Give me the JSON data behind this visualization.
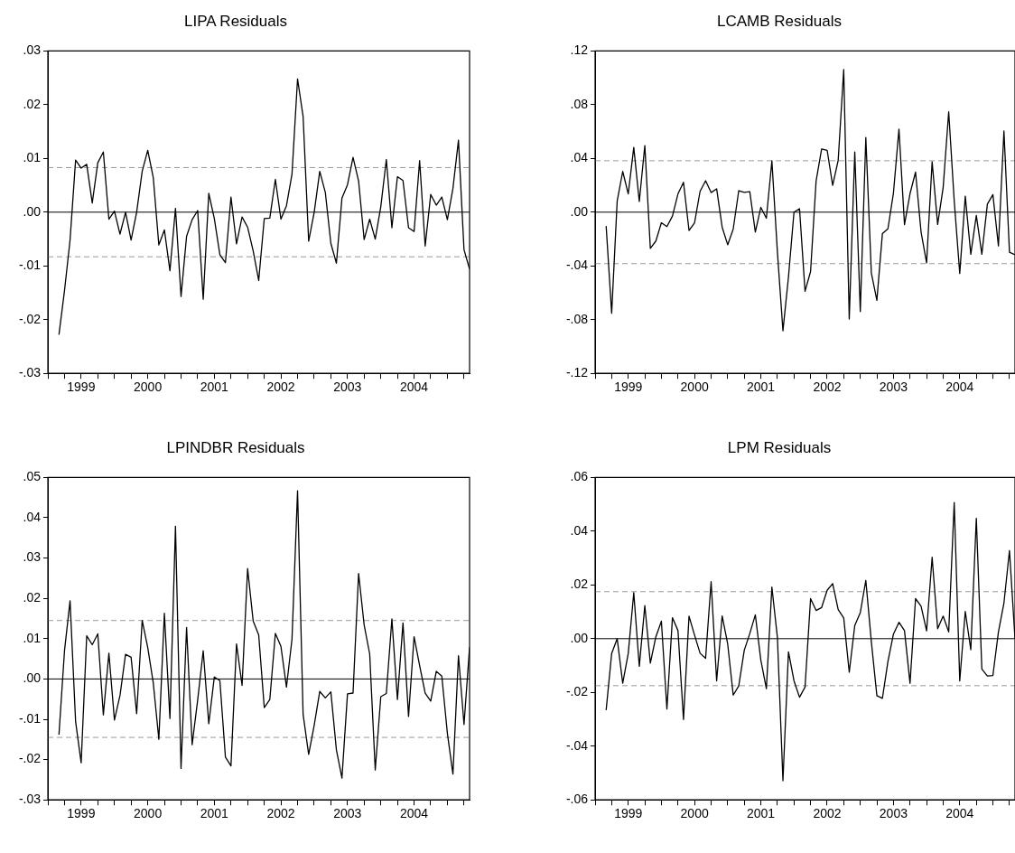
{
  "chart_data": [
    {
      "type": "line",
      "title": "LIPA Residuals",
      "x": [
        "1999-03",
        "1999-04",
        "1999-05",
        "1999-06",
        "1999-07",
        "1999-08",
        "1999-09",
        "1999-10",
        "1999-11",
        "1999-12",
        "2000-01",
        "2000-02",
        "2000-03",
        "2000-04",
        "2000-05",
        "2000-06",
        "2000-07",
        "2000-08",
        "2000-09",
        "2000-10",
        "2000-11",
        "2000-12",
        "2001-01",
        "2001-02",
        "2001-03",
        "2001-04",
        "2001-05",
        "2001-06",
        "2001-07",
        "2001-08",
        "2001-09",
        "2001-10",
        "2001-11",
        "2001-12",
        "2002-01",
        "2002-02",
        "2002-03",
        "2002-04",
        "2002-05",
        "2002-06",
        "2002-07",
        "2002-08",
        "2002-09",
        "2002-10",
        "2002-11",
        "2002-12",
        "2003-01",
        "2003-02",
        "2003-03",
        "2003-04",
        "2003-05",
        "2003-06",
        "2003-07",
        "2003-08",
        "2003-09",
        "2003-10",
        "2003-11",
        "2003-12",
        "2004-01",
        "2004-02",
        "2004-03",
        "2004-04",
        "2004-05",
        "2004-06",
        "2004-07",
        "2004-08",
        "2004-09",
        "2004-10",
        "2004-11",
        "2004-12",
        "2005-01",
        "2005-02",
        "2005-03",
        "2005-04",
        "2005-05"
      ],
      "series": [
        {
          "color": "#000000",
          "values": [
            -0.0228,
            -0.0146,
            -0.0052,
            0.0097,
            0.0082,
            0.0089,
            0.0017,
            0.0092,
            0.0112,
            -0.0013,
            0.0002,
            -0.0041,
            0.0,
            -0.0052,
            0.0,
            0.0076,
            0.0115,
            0.0064,
            -0.0061,
            -0.0033,
            -0.0109,
            0.0007,
            -0.0157,
            -0.0045,
            -0.0014,
            0.0003,
            -0.0162,
            0.0035,
            -0.0012,
            -0.0079,
            -0.0094,
            0.0028,
            -0.0059,
            -0.0009,
            -0.0028,
            -0.0072,
            -0.0127,
            -0.0012,
            -0.0011,
            0.0061,
            -0.0013,
            0.0012,
            0.0071,
            0.0248,
            0.0178,
            -0.0054,
            0.0,
            0.0076,
            0.0037,
            -0.0058,
            -0.0095,
            0.0026,
            0.0051,
            0.0102,
            0.0058,
            -0.0051,
            -0.0013,
            -0.005,
            0.001,
            0.0098,
            -0.0029,
            0.0066,
            0.0059,
            -0.0029,
            -0.0036,
            0.0096,
            -0.0063,
            0.0033,
            0.0013,
            0.0028,
            -0.0014,
            0.0044,
            0.0134,
            -0.007,
            -0.0106
          ]
        }
      ],
      "xlim": [
        "1999-01",
        "2005-05"
      ],
      "xticks": [
        {
          "value": "1999-01",
          "label": null
        },
        {
          "value": "1999-04",
          "label": null
        },
        {
          "value": "1999-07",
          "label": "1999"
        },
        {
          "value": "1999-10",
          "label": null
        },
        {
          "value": "2000-01",
          "label": null
        },
        {
          "value": "2000-04",
          "label": null
        },
        {
          "value": "2000-07",
          "label": "2000"
        },
        {
          "value": "2000-10",
          "label": null
        },
        {
          "value": "2001-01",
          "label": null
        },
        {
          "value": "2001-04",
          "label": null
        },
        {
          "value": "2001-07",
          "label": "2001"
        },
        {
          "value": "2001-10",
          "label": null
        },
        {
          "value": "2002-01",
          "label": null
        },
        {
          "value": "2002-04",
          "label": null
        },
        {
          "value": "2002-07",
          "label": "2002"
        },
        {
          "value": "2002-10",
          "label": null
        },
        {
          "value": "2003-01",
          "label": null
        },
        {
          "value": "2003-04",
          "label": null
        },
        {
          "value": "2003-07",
          "label": "2003"
        },
        {
          "value": "2003-10",
          "label": null
        },
        {
          "value": "2004-01",
          "label": null
        },
        {
          "value": "2004-04",
          "label": null
        },
        {
          "value": "2004-07",
          "label": "2004"
        },
        {
          "value": "2004-10",
          "label": null
        },
        {
          "value": "2005-01",
          "label": null
        },
        {
          "value": "2005-04",
          "label": null
        }
      ],
      "ylim": [
        -0.03,
        0.03
      ],
      "yticks": [
        {
          "value": 0.03,
          "label": ".03"
        },
        {
          "value": 0.02,
          "label": ".02"
        },
        {
          "value": 0.01,
          "label": ".01"
        },
        {
          "value": 0,
          "label": ".00"
        },
        {
          "value": -0.01,
          "label": "-.01"
        },
        {
          "value": -0.02,
          "label": "-.02"
        },
        {
          "value": -0.03,
          "label": "-.03"
        }
      ],
      "ref_lines": [
        {
          "axis": "y",
          "value": 0,
          "color": "#000000",
          "line_style": "solid"
        },
        {
          "axis": "y",
          "value": 0.0083,
          "color": "#999999",
          "line_style": "dashed"
        },
        {
          "axis": "y",
          "value": -0.0083,
          "color": "#999999",
          "line_style": "dashed"
        }
      ],
      "marker": "none",
      "line_style": "solid"
    },
    {
      "type": "line",
      "title": "LCAMB Residuals",
      "x": [
        "1999-03",
        "1999-04",
        "1999-05",
        "1999-06",
        "1999-07",
        "1999-08",
        "1999-09",
        "1999-10",
        "1999-11",
        "1999-12",
        "2000-01",
        "2000-02",
        "2000-03",
        "2000-04",
        "2000-05",
        "2000-06",
        "2000-07",
        "2000-08",
        "2000-09",
        "2000-10",
        "2000-11",
        "2000-12",
        "2001-01",
        "2001-02",
        "2001-03",
        "2001-04",
        "2001-05",
        "2001-06",
        "2001-07",
        "2001-08",
        "2001-09",
        "2001-10",
        "2001-11",
        "2001-12",
        "2002-01",
        "2002-02",
        "2002-03",
        "2002-04",
        "2002-05",
        "2002-06",
        "2002-07",
        "2002-08",
        "2002-09",
        "2002-10",
        "2002-11",
        "2002-12",
        "2003-01",
        "2003-02",
        "2003-03",
        "2003-04",
        "2003-05",
        "2003-06",
        "2003-07",
        "2003-08",
        "2003-09",
        "2003-10",
        "2003-11",
        "2003-12",
        "2004-01",
        "2004-02",
        "2004-03",
        "2004-04",
        "2004-05",
        "2004-06",
        "2004-07",
        "2004-08",
        "2004-09",
        "2004-10",
        "2004-11",
        "2004-12",
        "2005-01",
        "2005-02",
        "2005-03",
        "2005-04",
        "2005-05"
      ],
      "series": [
        {
          "color": "#000000",
          "values": [
            -0.0103,
            -0.0752,
            0.0084,
            0.0303,
            0.0136,
            0.0482,
            0.0079,
            0.0496,
            -0.027,
            -0.0215,
            -0.0079,
            -0.0107,
            -0.0029,
            0.0136,
            0.0222,
            -0.0136,
            -0.0079,
            0.0155,
            0.0234,
            0.0146,
            0.0174,
            -0.0112,
            -0.0243,
            -0.0126,
            0.016,
            0.0148,
            0.0153,
            -0.0148,
            0.0036,
            -0.0045,
            0.0382,
            -0.0298,
            -0.0883,
            -0.0482,
            0.0,
            0.0026,
            -0.0589,
            -0.0442,
            0.0231,
            0.047,
            0.0461,
            0.02,
            0.0387,
            0.1062,
            -0.0795,
            0.0449,
            -0.074,
            0.0556,
            -0.0453,
            -0.0656,
            -0.016,
            -0.0124,
            0.0143,
            0.0618,
            -0.0093,
            0.0138,
            0.0298,
            -0.0148,
            -0.0377,
            0.0375,
            -0.0091,
            0.0184,
            0.0747,
            0.0084,
            -0.0456,
            0.0119,
            -0.0313,
            -0.0024,
            -0.0313,
            0.006,
            0.0131,
            -0.0251,
            0.0604,
            -0.0298,
            -0.0317
          ]
        }
      ],
      "xlim": [
        "1999-01",
        "2005-05"
      ],
      "xticks": [
        {
          "value": "1999-01",
          "label": null
        },
        {
          "value": "1999-04",
          "label": null
        },
        {
          "value": "1999-07",
          "label": "1999"
        },
        {
          "value": "1999-10",
          "label": null
        },
        {
          "value": "2000-01",
          "label": null
        },
        {
          "value": "2000-04",
          "label": null
        },
        {
          "value": "2000-07",
          "label": "2000"
        },
        {
          "value": "2000-10",
          "label": null
        },
        {
          "value": "2001-01",
          "label": null
        },
        {
          "value": "2001-04",
          "label": null
        },
        {
          "value": "2001-07",
          "label": "2001"
        },
        {
          "value": "2001-10",
          "label": null
        },
        {
          "value": "2002-01",
          "label": null
        },
        {
          "value": "2002-04",
          "label": null
        },
        {
          "value": "2002-07",
          "label": "2002"
        },
        {
          "value": "2002-10",
          "label": null
        },
        {
          "value": "2003-01",
          "label": null
        },
        {
          "value": "2003-04",
          "label": null
        },
        {
          "value": "2003-07",
          "label": "2003"
        },
        {
          "value": "2003-10",
          "label": null
        },
        {
          "value": "2004-01",
          "label": null
        },
        {
          "value": "2004-04",
          "label": null
        },
        {
          "value": "2004-07",
          "label": "2004"
        },
        {
          "value": "2004-10",
          "label": null
        },
        {
          "value": "2005-01",
          "label": null
        },
        {
          "value": "2005-04",
          "label": null
        }
      ],
      "ylim": [
        -0.12,
        0.12
      ],
      "yticks": [
        {
          "value": 0.12,
          "label": ".12"
        },
        {
          "value": 0.08,
          "label": ".08"
        },
        {
          "value": 0.04,
          "label": ".04"
        },
        {
          "value": 0,
          "label": ".00"
        },
        {
          "value": -0.04,
          "label": "-.04"
        },
        {
          "value": -0.08,
          "label": "-.08"
        },
        {
          "value": -0.12,
          "label": "-.12"
        }
      ],
      "ref_lines": [
        {
          "axis": "y",
          "value": 0,
          "color": "#000000",
          "line_style": "solid"
        },
        {
          "axis": "y",
          "value": 0.0383,
          "color": "#999999",
          "line_style": "dashed"
        },
        {
          "axis": "y",
          "value": -0.0383,
          "color": "#999999",
          "line_style": "dashed"
        }
      ],
      "marker": "none",
      "line_style": "solid"
    },
    {
      "type": "line",
      "title": "LPINDBR Residuals",
      "x": [
        "1999-03",
        "1999-04",
        "1999-05",
        "1999-06",
        "1999-07",
        "1999-08",
        "1999-09",
        "1999-10",
        "1999-11",
        "1999-12",
        "2000-01",
        "2000-02",
        "2000-03",
        "2000-04",
        "2000-05",
        "2000-06",
        "2000-07",
        "2000-08",
        "2000-09",
        "2000-10",
        "2000-11",
        "2000-12",
        "2001-01",
        "2001-02",
        "2001-03",
        "2001-04",
        "2001-05",
        "2001-06",
        "2001-07",
        "2001-08",
        "2001-09",
        "2001-10",
        "2001-11",
        "2001-12",
        "2002-01",
        "2002-02",
        "2002-03",
        "2002-04",
        "2002-05",
        "2002-06",
        "2002-07",
        "2002-08",
        "2002-09",
        "2002-10",
        "2002-11",
        "2002-12",
        "2003-01",
        "2003-02",
        "2003-03",
        "2003-04",
        "2003-05",
        "2003-06",
        "2003-07",
        "2003-08",
        "2003-09",
        "2003-10",
        "2003-11",
        "2003-12",
        "2004-01",
        "2004-02",
        "2004-03",
        "2004-04",
        "2004-05",
        "2004-06",
        "2004-07",
        "2004-08",
        "2004-09",
        "2004-10",
        "2004-11",
        "2004-12",
        "2005-01",
        "2005-02",
        "2005-03",
        "2005-04",
        "2005-05"
      ],
      "series": [
        {
          "color": "#000000",
          "values": [
            -0.0138,
            0.007,
            0.0194,
            -0.0106,
            -0.0208,
            0.0107,
            0.0085,
            0.0112,
            -0.0089,
            0.0064,
            -0.0102,
            -0.0041,
            0.0061,
            0.0054,
            -0.0086,
            0.0145,
            0.0078,
            -0.001,
            -0.015,
            0.0163,
            -0.0098,
            0.0379,
            -0.0222,
            0.0128,
            -0.0163,
            -0.0052,
            0.007,
            -0.0111,
            0.0005,
            -0.0004,
            -0.0194,
            -0.0216,
            0.0087,
            -0.0016,
            0.0274,
            0.0144,
            0.0109,
            -0.0071,
            -0.0051,
            0.0113,
            0.0081,
            -0.002,
            0.0099,
            0.0467,
            -0.0088,
            -0.0187,
            -0.0115,
            -0.0031,
            -0.0047,
            -0.0032,
            -0.0176,
            -0.0246,
            -0.0037,
            -0.0035,
            0.0262,
            0.0134,
            0.0062,
            -0.0226,
            -0.0044,
            -0.0036,
            0.0149,
            -0.0051,
            0.0139,
            -0.0093,
            0.0105,
            0.0033,
            -0.0035,
            -0.0055,
            0.0019,
            0.0007,
            -0.0135,
            -0.0236,
            0.0058,
            -0.0113,
            0.0079
          ]
        }
      ],
      "xlim": [
        "1999-01",
        "2005-05"
      ],
      "xticks": [
        {
          "value": "1999-01",
          "label": null
        },
        {
          "value": "1999-04",
          "label": null
        },
        {
          "value": "1999-07",
          "label": "1999"
        },
        {
          "value": "1999-10",
          "label": null
        },
        {
          "value": "2000-01",
          "label": null
        },
        {
          "value": "2000-04",
          "label": null
        },
        {
          "value": "2000-07",
          "label": "2000"
        },
        {
          "value": "2000-10",
          "label": null
        },
        {
          "value": "2001-01",
          "label": null
        },
        {
          "value": "2001-04",
          "label": null
        },
        {
          "value": "2001-07",
          "label": "2001"
        },
        {
          "value": "2001-10",
          "label": null
        },
        {
          "value": "2002-01",
          "label": null
        },
        {
          "value": "2002-04",
          "label": null
        },
        {
          "value": "2002-07",
          "label": "2002"
        },
        {
          "value": "2002-10",
          "label": null
        },
        {
          "value": "2003-01",
          "label": null
        },
        {
          "value": "2003-04",
          "label": null
        },
        {
          "value": "2003-07",
          "label": "2003"
        },
        {
          "value": "2003-10",
          "label": null
        },
        {
          "value": "2004-01",
          "label": null
        },
        {
          "value": "2004-04",
          "label": null
        },
        {
          "value": "2004-07",
          "label": "2004"
        },
        {
          "value": "2004-10",
          "label": null
        },
        {
          "value": "2005-01",
          "label": null
        },
        {
          "value": "2005-04",
          "label": null
        }
      ],
      "ylim": [
        -0.03,
        0.05
      ],
      "yticks": [
        {
          "value": 0.05,
          "label": ".05"
        },
        {
          "value": 0.04,
          "label": ".04"
        },
        {
          "value": 0.03,
          "label": ".03"
        },
        {
          "value": 0.02,
          "label": ".02"
        },
        {
          "value": 0.01,
          "label": ".01"
        },
        {
          "value": 0,
          "label": ".00"
        },
        {
          "value": -0.01,
          "label": "-.01"
        },
        {
          "value": -0.02,
          "label": "-.02"
        },
        {
          "value": -0.03,
          "label": "-.03"
        }
      ],
      "ref_lines": [
        {
          "axis": "y",
          "value": 0,
          "color": "#000000",
          "line_style": "solid"
        },
        {
          "axis": "y",
          "value": 0.0145,
          "color": "#999999",
          "line_style": "dashed"
        },
        {
          "axis": "y",
          "value": -0.0145,
          "color": "#999999",
          "line_style": "dashed"
        }
      ],
      "marker": "none",
      "line_style": "solid"
    },
    {
      "type": "line",
      "title": "LPM Residuals",
      "x": [
        "1999-03",
        "1999-04",
        "1999-05",
        "1999-06",
        "1999-07",
        "1999-08",
        "1999-09",
        "1999-10",
        "1999-11",
        "1999-12",
        "2000-01",
        "2000-02",
        "2000-03",
        "2000-04",
        "2000-05",
        "2000-06",
        "2000-07",
        "2000-08",
        "2000-09",
        "2000-10",
        "2000-11",
        "2000-12",
        "2001-01",
        "2001-02",
        "2001-03",
        "2001-04",
        "2001-05",
        "2001-06",
        "2001-07",
        "2001-08",
        "2001-09",
        "2001-10",
        "2001-11",
        "2001-12",
        "2002-01",
        "2002-02",
        "2002-03",
        "2002-04",
        "2002-05",
        "2002-06",
        "2002-07",
        "2002-08",
        "2002-09",
        "2002-10",
        "2002-11",
        "2002-12",
        "2003-01",
        "2003-02",
        "2003-03",
        "2003-04",
        "2003-05",
        "2003-06",
        "2003-07",
        "2003-08",
        "2003-09",
        "2003-10",
        "2003-11",
        "2003-12",
        "2004-01",
        "2004-02",
        "2004-03",
        "2004-04",
        "2004-05",
        "2004-06",
        "2004-07",
        "2004-08",
        "2004-09",
        "2004-10",
        "2004-11",
        "2004-12",
        "2005-01",
        "2005-02",
        "2005-03",
        "2005-04",
        "2005-05"
      ],
      "series": [
        {
          "color": "#000000",
          "values": [
            -0.0266,
            -0.0055,
            0.0,
            -0.0166,
            -0.0055,
            0.0171,
            -0.0103,
            0.0123,
            -0.0091,
            0.0007,
            0.0065,
            -0.0262,
            0.0078,
            0.003,
            -0.0301,
            0.0084,
            0.0013,
            -0.0054,
            -0.0073,
            0.0212,
            -0.0157,
            0.0085,
            -0.002,
            -0.021,
            -0.0176,
            -0.0043,
            0.0019,
            0.0089,
            -0.008,
            -0.0186,
            0.0192,
            0.0004,
            -0.0529,
            -0.0049,
            -0.0157,
            -0.0218,
            -0.018,
            0.0149,
            0.0105,
            0.0116,
            0.018,
            0.0205,
            0.0108,
            0.0077,
            -0.0125,
            0.0049,
            0.0097,
            0.0217,
            -0.0011,
            -0.0212,
            -0.0222,
            -0.0085,
            0.0017,
            0.0061,
            0.003,
            -0.0166,
            0.0149,
            0.0121,
            0.0029,
            0.0303,
            0.0037,
            0.0084,
            0.0025,
            0.0507,
            -0.0157,
            0.0101,
            -0.0041,
            0.0448,
            -0.0113,
            -0.0139,
            -0.0137,
            0.0025,
            0.0133,
            0.0328,
            0.0
          ]
        }
      ],
      "xlim": [
        "1999-01",
        "2005-05"
      ],
      "xticks": [
        {
          "value": "1999-01",
          "label": null
        },
        {
          "value": "1999-04",
          "label": null
        },
        {
          "value": "1999-07",
          "label": "1999"
        },
        {
          "value": "1999-10",
          "label": null
        },
        {
          "value": "2000-01",
          "label": null
        },
        {
          "value": "2000-04",
          "label": null
        },
        {
          "value": "2000-07",
          "label": "2000"
        },
        {
          "value": "2000-10",
          "label": null
        },
        {
          "value": "2001-01",
          "label": null
        },
        {
          "value": "2001-04",
          "label": null
        },
        {
          "value": "2001-07",
          "label": "2001"
        },
        {
          "value": "2001-10",
          "label": null
        },
        {
          "value": "2002-01",
          "label": null
        },
        {
          "value": "2002-04",
          "label": null
        },
        {
          "value": "2002-07",
          "label": "2002"
        },
        {
          "value": "2002-10",
          "label": null
        },
        {
          "value": "2003-01",
          "label": null
        },
        {
          "value": "2003-04",
          "label": null
        },
        {
          "value": "2003-07",
          "label": "2003"
        },
        {
          "value": "2003-10",
          "label": null
        },
        {
          "value": "2004-01",
          "label": null
        },
        {
          "value": "2004-04",
          "label": null
        },
        {
          "value": "2004-07",
          "label": "2004"
        },
        {
          "value": "2004-10",
          "label": null
        },
        {
          "value": "2005-01",
          "label": null
        },
        {
          "value": "2005-04",
          "label": null
        }
      ],
      "ylim": [
        -0.06,
        0.06
      ],
      "yticks": [
        {
          "value": 0.06,
          "label": ".06"
        },
        {
          "value": 0.04,
          "label": ".04"
        },
        {
          "value": 0.02,
          "label": ".02"
        },
        {
          "value": 0,
          "label": ".00"
        },
        {
          "value": -0.02,
          "label": "-.02"
        },
        {
          "value": -0.04,
          "label": "-.04"
        },
        {
          "value": -0.06,
          "label": "-.06"
        }
      ],
      "ref_lines": [
        {
          "axis": "y",
          "value": 0,
          "color": "#000000",
          "line_style": "solid"
        },
        {
          "axis": "y",
          "value": 0.0175,
          "color": "#999999",
          "line_style": "dashed"
        },
        {
          "axis": "y",
          "value": -0.0175,
          "color": "#999999",
          "line_style": "dashed"
        }
      ],
      "marker": "none",
      "line_style": "solid"
    }
  ]
}
